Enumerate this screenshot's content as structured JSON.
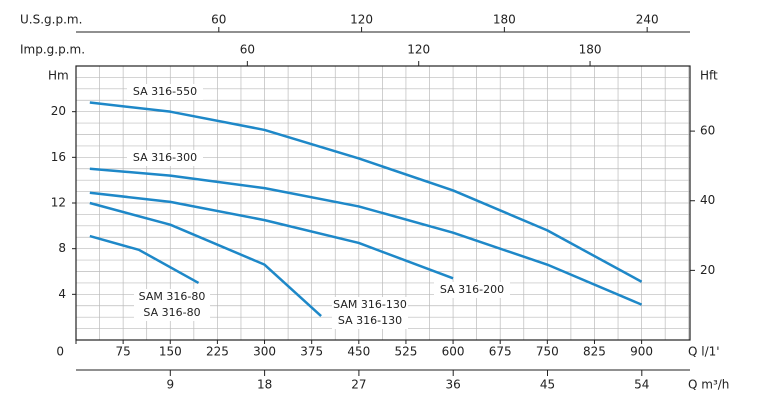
{
  "chart_data": {
    "type": "line",
    "x_title": "Q  l/1'",
    "xlim": [
      0,
      977
    ],
    "xticks": [
      0,
      75,
      150,
      225,
      300,
      375,
      450,
      525,
      600,
      675,
      750,
      825,
      900
    ],
    "y_title": "Hm",
    "ylim": [
      0,
      24
    ],
    "yticks": [
      4,
      8,
      12,
      16,
      20
    ],
    "y2_title": "Hft",
    "y2lim": [
      0,
      78.7
    ],
    "y2ticks": [
      20,
      40,
      60
    ],
    "top_axes": [
      {
        "title": "U.S.g.p.m.",
        "lim": [
          0,
          258
        ],
        "ticks": [
          60,
          120,
          180,
          240
        ]
      },
      {
        "title": "Imp.g.p.m.",
        "lim": [
          0,
          215
        ],
        "ticks": [
          60,
          120,
          180
        ]
      }
    ],
    "bottom_axis": {
      "title": "Q  m³/h",
      "lim": [
        0,
        58.6
      ],
      "ticks": [
        9,
        18,
        27,
        36,
        45,
        54
      ]
    },
    "grid": true,
    "series": [
      {
        "name": "SA 316-550",
        "color": "#1e88c8",
        "x": [
          22,
          150,
          300,
          450,
          600,
          750,
          900
        ],
        "values": [
          20.8,
          20.0,
          18.4,
          15.9,
          13.1,
          9.6,
          5.1
        ]
      },
      {
        "name": "SA 316-300",
        "color": "#1e88c8",
        "x": [
          22,
          150,
          300,
          450,
          600,
          750,
          900
        ],
        "values": [
          15.0,
          14.4,
          13.3,
          11.7,
          9.4,
          6.6,
          3.1
        ]
      },
      {
        "name": "SA 316-200",
        "color": "#1e88c8",
        "x": [
          22,
          150,
          300,
          450,
          600
        ],
        "values": [
          12.9,
          12.1,
          10.5,
          8.5,
          5.4
        ]
      },
      {
        "name": "SAM 316-130",
        "alt_name": "SA 316-130",
        "color": "#1e88c8",
        "x": [
          22,
          150,
          300,
          390
        ],
        "values": [
          12.0,
          10.1,
          6.6,
          2.1
        ]
      },
      {
        "name": "SAM 316-80",
        "alt_name": "SA 316-80",
        "color": "#1e88c8",
        "x": [
          22,
          100,
          195
        ],
        "values": [
          9.1,
          7.9,
          5.0
        ]
      }
    ]
  }
}
